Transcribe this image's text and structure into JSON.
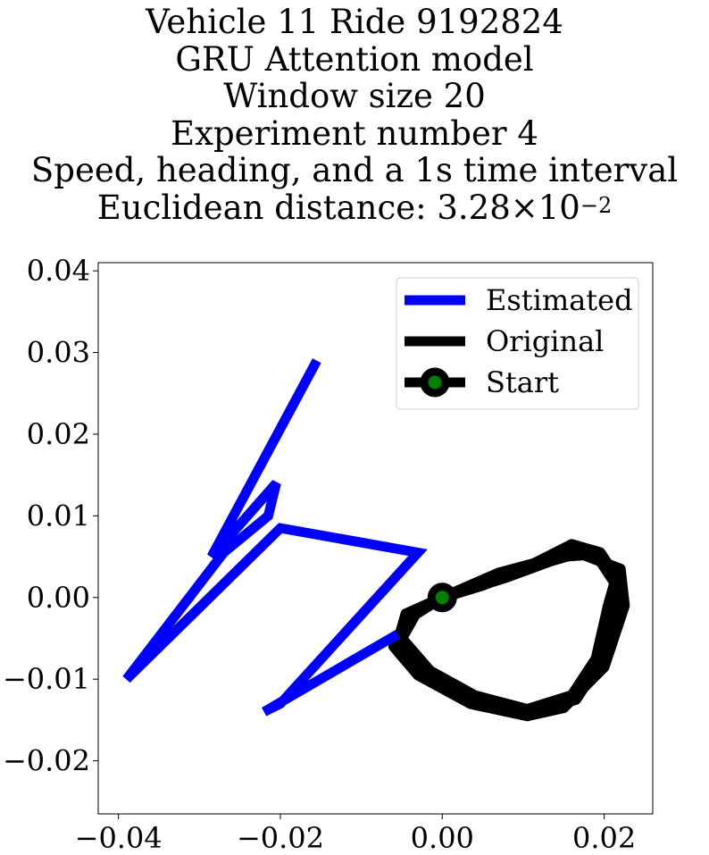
{
  "chart_data": {
    "type": "line",
    "title_lines": [
      "Vehicle 11 Ride 9192824",
      "GRU Attention model",
      "Window size 20",
      "Experiment number 4",
      "Speed, heading, and a 1s time interval"
    ],
    "distance_label": "Euclidean distance: 3.28",
    "distance_multiplier": "×10",
    "distance_exponent": "−2",
    "xlim": [
      -0.0425,
      0.026
    ],
    "ylim": [
      -0.0265,
      0.041
    ],
    "xticks": [
      {
        "value": -0.04,
        "label": "−0.04"
      },
      {
        "value": -0.02,
        "label": "−0.02"
      },
      {
        "value": 0.0,
        "label": "0.00"
      },
      {
        "value": 0.02,
        "label": "0.02"
      }
    ],
    "yticks": [
      {
        "value": 0.04,
        "label": "0.04"
      },
      {
        "value": 0.03,
        "label": "0.03"
      },
      {
        "value": 0.02,
        "label": "0.02"
      },
      {
        "value": 0.01,
        "label": "0.01"
      },
      {
        "value": 0.0,
        "label": "0.00"
      },
      {
        "value": -0.01,
        "label": "−0.01"
      },
      {
        "value": -0.02,
        "label": "−0.02"
      }
    ],
    "grid": false,
    "legend_position": "top-right",
    "series": [
      {
        "name": "Estimated",
        "color": "#0000ff",
        "points": [
          [
            -0.0155,
            0.029
          ],
          [
            -0.0285,
            0.005
          ],
          [
            -0.0205,
            0.014
          ],
          [
            -0.0215,
            0.01
          ],
          [
            -0.027,
            0.0055
          ],
          [
            -0.039,
            -0.01
          ],
          [
            -0.02,
            0.0085
          ],
          [
            -0.003,
            0.0055
          ],
          [
            -0.02,
            -0.013
          ],
          [
            -0.022,
            -0.014
          ],
          [
            -0.0055,
            -0.0045
          ]
        ]
      },
      {
        "name": "Original",
        "color": "#000000",
        "loops": [
          [
            [
              0.0,
              0.0
            ],
            [
              0.008,
              0.0025
            ],
            [
              0.0135,
              0.0045
            ],
            [
              0.017,
              0.0055
            ],
            [
              0.0195,
              0.0045
            ],
            [
              0.0215,
              0.0015
            ],
            [
              0.021,
              -0.003
            ],
            [
              0.0195,
              -0.008
            ],
            [
              0.0165,
              -0.0125
            ],
            [
              0.011,
              -0.014
            ],
            [
              0.0045,
              -0.0125
            ],
            [
              -0.002,
              -0.0095
            ],
            [
              -0.0055,
              -0.0055
            ],
            [
              -0.0045,
              -0.002
            ],
            [
              0.0,
              0.0
            ]
          ],
          [
            [
              0.0,
              0.0
            ],
            [
              0.005,
              0.0015
            ],
            [
              0.01,
              0.0035
            ],
            [
              0.016,
              0.0065
            ],
            [
              0.0195,
              0.0055
            ],
            [
              0.0215,
              0.0025
            ],
            [
              0.0205,
              -0.001
            ],
            [
              0.019,
              -0.0075
            ],
            [
              0.016,
              -0.012
            ],
            [
              0.0105,
              -0.0137
            ],
            [
              0.004,
              -0.012
            ],
            [
              -0.0015,
              -0.009
            ],
            [
              -0.005,
              -0.005
            ],
            [
              -0.003,
              -0.0015
            ],
            [
              0.0,
              0.0
            ]
          ],
          [
            [
              0.0,
              0.0
            ],
            [
              0.007,
              0.003
            ],
            [
              0.0145,
              0.005
            ],
            [
              0.0175,
              0.0052
            ],
            [
              0.022,
              0.0035
            ],
            [
              0.0225,
              -0.001
            ],
            [
              0.02,
              -0.0085
            ],
            [
              0.015,
              -0.0135
            ],
            [
              0.0105,
              -0.0145
            ],
            [
              0.0035,
              -0.013
            ],
            [
              -0.003,
              -0.0095
            ],
            [
              -0.006,
              -0.006
            ],
            [
              -0.004,
              -0.0025
            ],
            [
              0.0,
              0.0
            ]
          ]
        ]
      },
      {
        "name": "Start",
        "marker_edge": "#000000",
        "marker_fill": "#008000",
        "point": [
          0.0,
          0.0
        ]
      }
    ]
  }
}
